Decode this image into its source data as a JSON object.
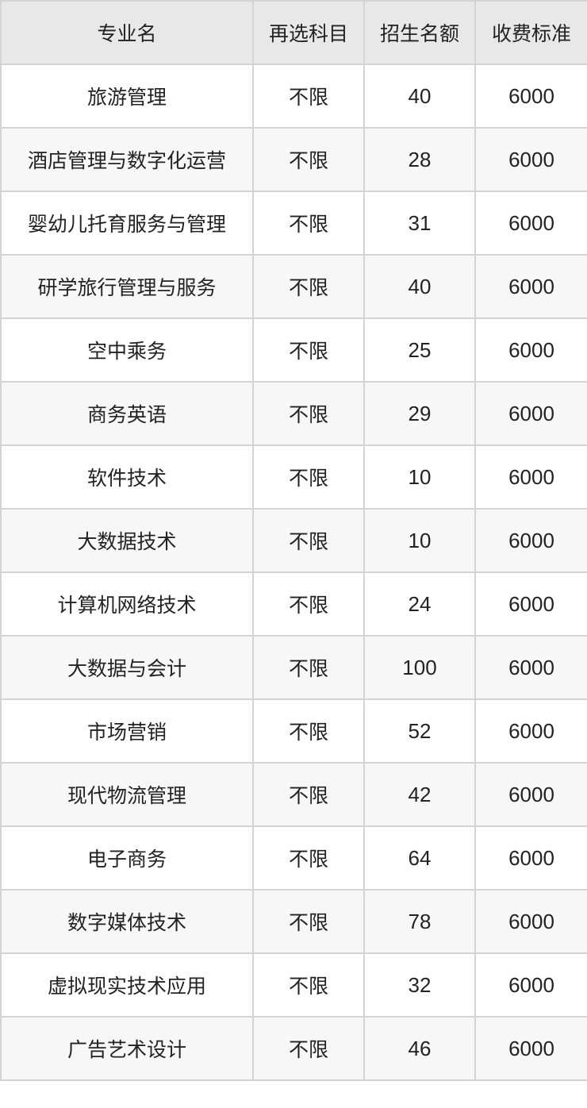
{
  "table": {
    "headers": [
      "专业名",
      "再选科目",
      "招生名额",
      "收费标准"
    ],
    "rows": [
      [
        "旅游管理",
        "不限",
        "40",
        "6000"
      ],
      [
        "酒店管理与数字化运营",
        "不限",
        "28",
        "6000"
      ],
      [
        "婴幼儿托育服务与管理",
        "不限",
        "31",
        "6000"
      ],
      [
        "研学旅行管理与服务",
        "不限",
        "40",
        "6000"
      ],
      [
        "空中乘务",
        "不限",
        "25",
        "6000"
      ],
      [
        "商务英语",
        "不限",
        "29",
        "6000"
      ],
      [
        "软件技术",
        "不限",
        "10",
        "6000"
      ],
      [
        "大数据技术",
        "不限",
        "10",
        "6000"
      ],
      [
        "计算机网络技术",
        "不限",
        "24",
        "6000"
      ],
      [
        "大数据与会计",
        "不限",
        "100",
        "6000"
      ],
      [
        "市场营销",
        "不限",
        "52",
        "6000"
      ],
      [
        "现代物流管理",
        "不限",
        "42",
        "6000"
      ],
      [
        "电子商务",
        "不限",
        "64",
        "6000"
      ],
      [
        "数字媒体技术",
        "不限",
        "78",
        "6000"
      ],
      [
        "虚拟现实技术应用",
        "不限",
        "32",
        "6000"
      ],
      [
        "广告艺术设计",
        "不限",
        "46",
        "6000"
      ]
    ]
  },
  "colors": {
    "header_bg": "#e8e8e8",
    "alt_row_bg": "#f7f7f7",
    "border": "#d4d4d4",
    "text": "#222222"
  }
}
